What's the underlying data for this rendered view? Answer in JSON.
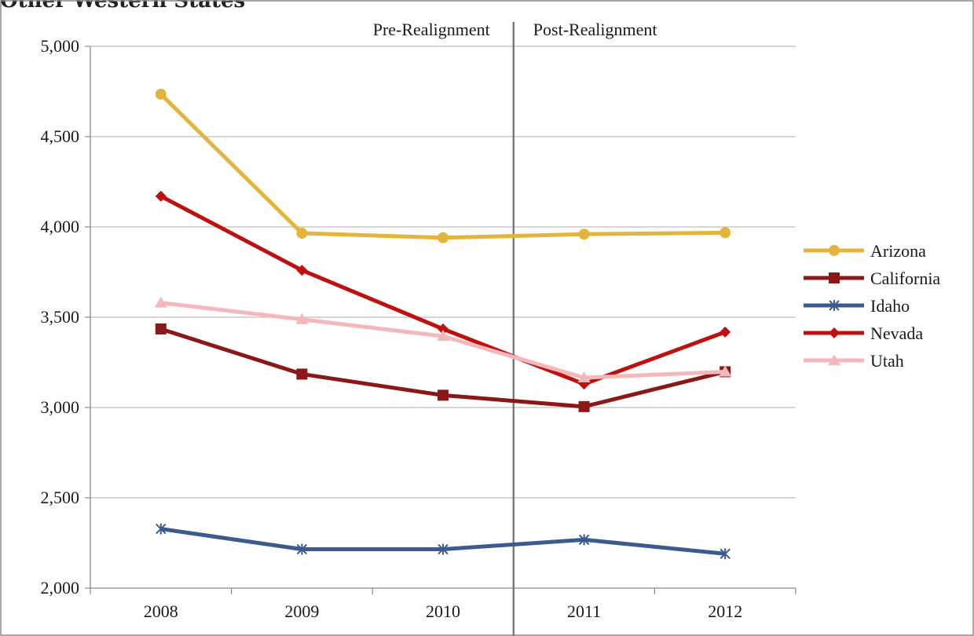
{
  "page_heading": "Other Western States",
  "chart_data": {
    "type": "line",
    "title": "",
    "xlabel": "",
    "ylabel": "",
    "categories": [
      "2008",
      "2009",
      "2010",
      "2011",
      "2012"
    ],
    "ylim": [
      2000,
      5000
    ],
    "yticks": [
      2000,
      2500,
      3000,
      3500,
      4000,
      4500,
      5000
    ],
    "ytick_labels": [
      "2,000",
      "2,500",
      "3,000",
      "3,500",
      "4,000",
      "4,500",
      "5,000"
    ],
    "grid": true,
    "legend_position": "right",
    "annotations": [
      {
        "text": "Pre-Realignment"
      },
      {
        "text": "Post-Realignment"
      }
    ],
    "divider_after_category": "2010",
    "series": [
      {
        "name": "Arizona",
        "color": "#e3b53b",
        "marker": "circle",
        "values": [
          4735,
          3965,
          3940,
          3960,
          3968
        ]
      },
      {
        "name": "California",
        "color": "#8b1717",
        "marker": "square",
        "values": [
          3435,
          3185,
          3068,
          3005,
          3198
        ]
      },
      {
        "name": "Idaho",
        "color": "#3b5a8e",
        "marker": "asterisk",
        "values": [
          2328,
          2215,
          2215,
          2268,
          2190
        ]
      },
      {
        "name": "Nevada",
        "color": "#c00f0f",
        "marker": "diamond",
        "values": [
          4170,
          3760,
          3435,
          3130,
          3418
        ]
      },
      {
        "name": "Utah",
        "color": "#f5b8ba",
        "marker": "triangle",
        "values": [
          3580,
          3488,
          3395,
          3165,
          3198
        ]
      }
    ]
  }
}
